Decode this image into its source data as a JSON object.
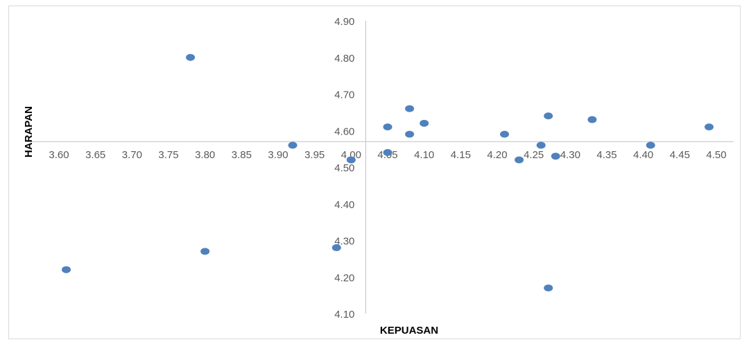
{
  "chart_data": {
    "type": "scatter",
    "title": "",
    "xlabel": "KEPUASAN",
    "ylabel": "HARAPAN",
    "xlim": [
      3.6,
      4.5
    ],
    "ylim": [
      4.1,
      4.9
    ],
    "x_ticks": [
      "3.60",
      "3.65",
      "3.70",
      "3.75",
      "3.80",
      "3.85",
      "3.90",
      "3.95",
      "4.00",
      "4.05",
      "4.10",
      "4.15",
      "4.20",
      "4.25",
      "4.30",
      "4.35",
      "4.40",
      "4.45",
      "4.50"
    ],
    "y_ticks": [
      "4.90",
      "4.80",
      "4.70",
      "4.60",
      "4.50",
      "4.40",
      "4.30",
      "4.20",
      "4.10"
    ],
    "axis_cross": {
      "x": 4.02,
      "y": 4.57
    },
    "grid": false,
    "legend": "none",
    "marker_color": "#4f81bd",
    "axis_color": "#bfbfbf",
    "points": [
      {
        "x": 3.61,
        "y": 4.22
      },
      {
        "x": 3.78,
        "y": 4.8
      },
      {
        "x": 3.8,
        "y": 4.27
      },
      {
        "x": 3.92,
        "y": 4.56
      },
      {
        "x": 3.98,
        "y": 4.28
      },
      {
        "x": 4.0,
        "y": 4.52
      },
      {
        "x": 4.05,
        "y": 4.61
      },
      {
        "x": 4.05,
        "y": 4.54
      },
      {
        "x": 4.08,
        "y": 4.66
      },
      {
        "x": 4.08,
        "y": 4.59
      },
      {
        "x": 4.1,
        "y": 4.62
      },
      {
        "x": 4.21,
        "y": 4.59
      },
      {
        "x": 4.23,
        "y": 4.52
      },
      {
        "x": 4.26,
        "y": 4.56
      },
      {
        "x": 4.27,
        "y": 4.64
      },
      {
        "x": 4.27,
        "y": 4.17
      },
      {
        "x": 4.28,
        "y": 4.53
      },
      {
        "x": 4.33,
        "y": 4.63
      },
      {
        "x": 4.41,
        "y": 4.56
      },
      {
        "x": 4.49,
        "y": 4.61
      }
    ]
  }
}
